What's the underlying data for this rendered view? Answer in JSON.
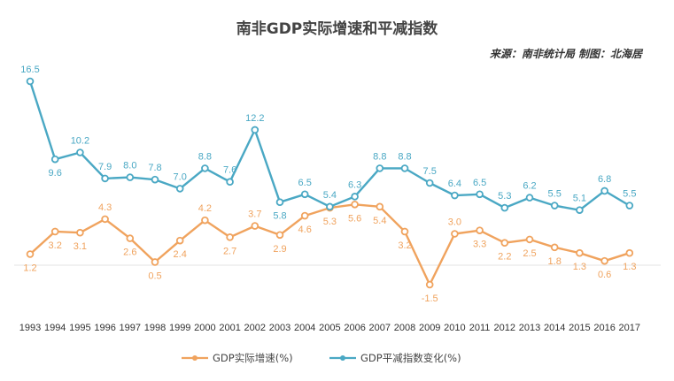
{
  "chart_data": {
    "type": "line",
    "title": "南非GDP实际增速和平减指数",
    "source": "来源：南非统计局  制图：北海居",
    "categories": [
      "1993",
      "1994",
      "1995",
      "1996",
      "1997",
      "1998",
      "1999",
      "2000",
      "2001",
      "2002",
      "2003",
      "2004",
      "2005",
      "2006",
      "2007",
      "2008",
      "2009",
      "2010",
      "2011",
      "2012",
      "2013",
      "2014",
      "2015",
      "2016",
      "2017"
    ],
    "series": [
      {
        "name": "GDP实际增速(%)",
        "color": "#f0a35e",
        "values": [
          1.2,
          3.2,
          3.1,
          4.3,
          2.6,
          0.5,
          2.4,
          4.2,
          2.7,
          3.7,
          2.9,
          4.6,
          5.3,
          5.6,
          5.4,
          3.2,
          -1.5,
          3.0,
          3.3,
          2.2,
          2.5,
          1.8,
          1.3,
          0.6,
          1.3
        ]
      },
      {
        "name": "GDP平减指数变化(%)",
        "color": "#4aa8c4",
        "values": [
          16.5,
          9.6,
          10.2,
          7.9,
          8.0,
          7.8,
          7.0,
          8.8,
          7.6,
          12.2,
          5.8,
          6.5,
          5.4,
          6.3,
          8.8,
          8.8,
          7.5,
          6.4,
          6.5,
          5.3,
          6.2,
          5.5,
          5.1,
          6.8,
          5.5
        ]
      }
    ],
    "xlabel": "",
    "ylabel": "",
    "ylim": [
      -1.5,
      16.5
    ],
    "grid": false,
    "legend": "bottom"
  }
}
